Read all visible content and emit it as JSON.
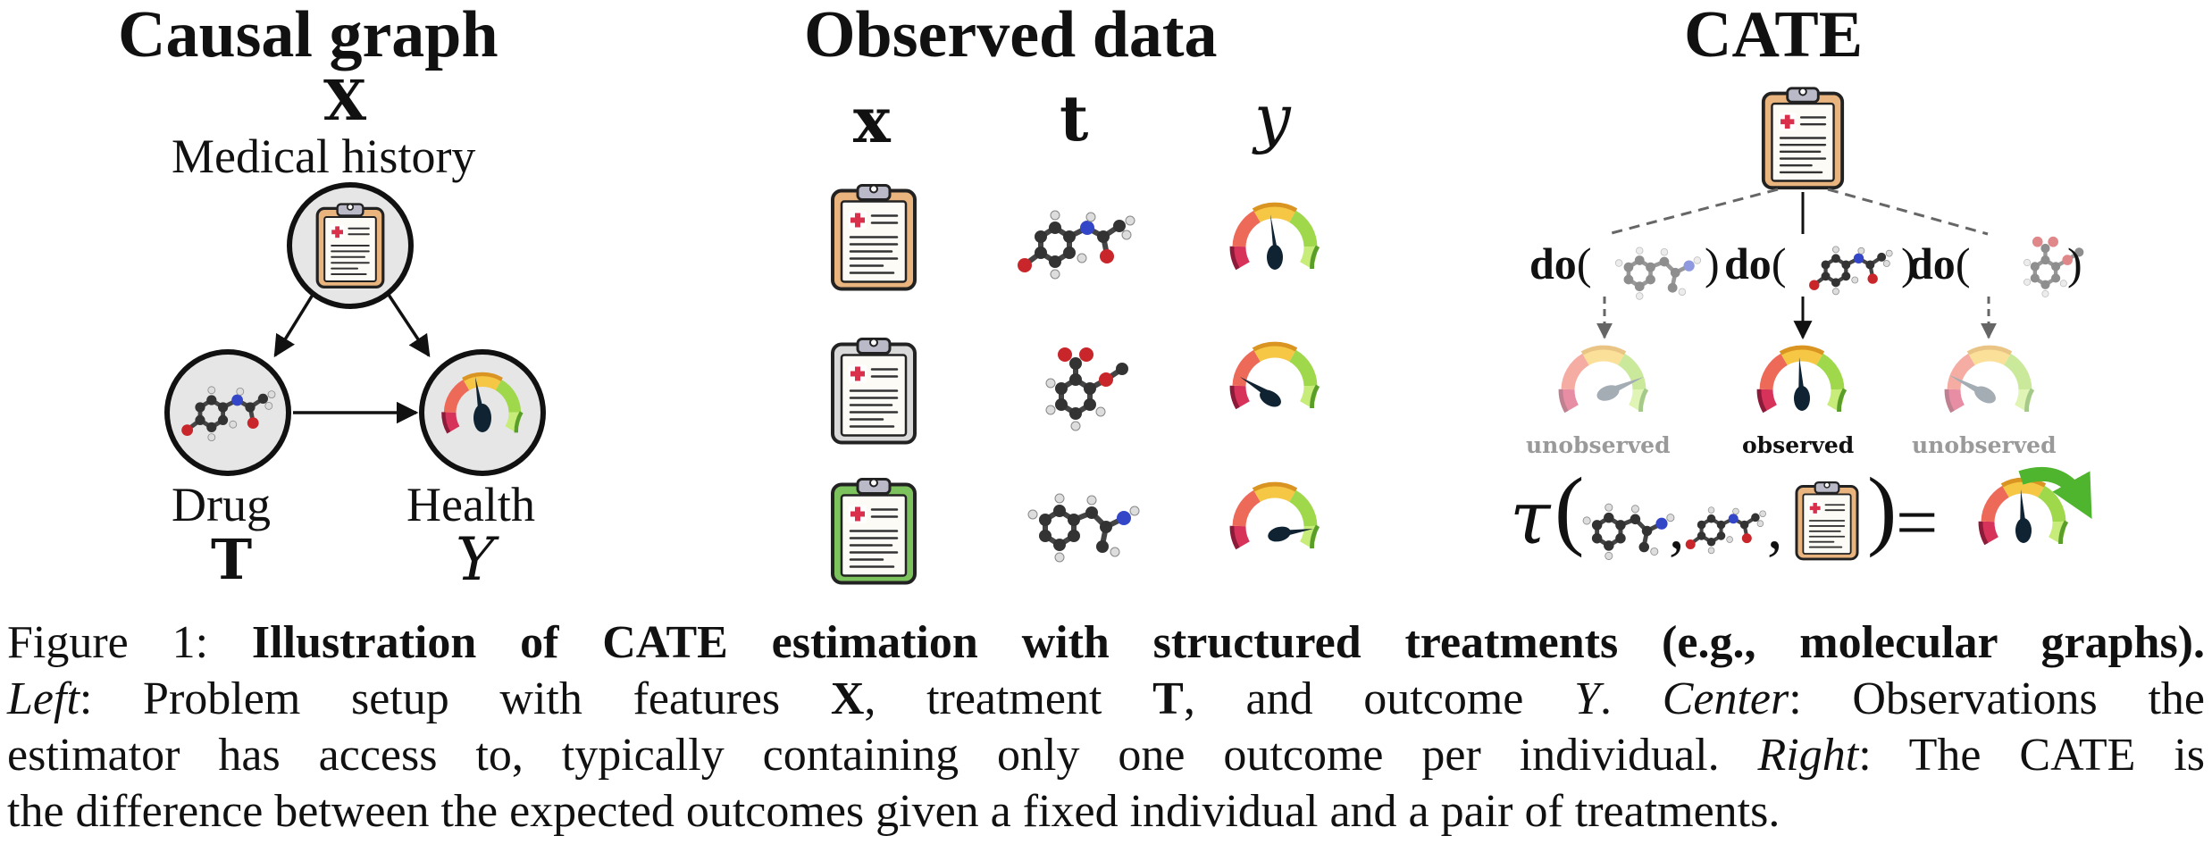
{
  "panels": {
    "left": {
      "title": "Causal graph",
      "x_symbol": "X",
      "x_label": "Medical history",
      "drug_label": "Drug",
      "drug_symbol": "T",
      "health_label": "Health",
      "health_symbol": "Y"
    },
    "center": {
      "title": "Observed data",
      "columns": [
        "x",
        "t",
        "y"
      ]
    },
    "right": {
      "title": "CATE",
      "do_label": "do",
      "outcome_labels": [
        "unobserved",
        "observed",
        "unobserved"
      ],
      "tau_symbol": "τ",
      "equals": "="
    }
  },
  "caption": {
    "figure_label": "Figure 1:",
    "title": "Illustration of CATE estimation with structured treatments (e.g., molecular graphs).",
    "left_label": "Left",
    "left_text_1": ": Problem setup with features ",
    "x": "X",
    "left_text_2": ", treatment ",
    "t": "T",
    "left_text_3": ", and outcome ",
    "y": "Y",
    "left_text_4": ".",
    "center_label": "Center",
    "center_text_1": ": Observations the",
    "center_text_2": "estimator has access to, typically containing only one outcome per individual.",
    "right_label": "Right",
    "right_text_1": ": The CATE is",
    "right_text_2": "the difference between the expected outcomes given a fixed individual and a pair of treatments."
  },
  "colors": {
    "clipboard_orange": "#e9b47d",
    "clipboard_gray": "#d9d9d9",
    "clipboard_green": "#7cc35d",
    "gauge_red": "#d7335a",
    "gauge_orange": "#f5a443",
    "gauge_yellow": "#f6d044",
    "gauge_green": "#7dcf3d"
  }
}
